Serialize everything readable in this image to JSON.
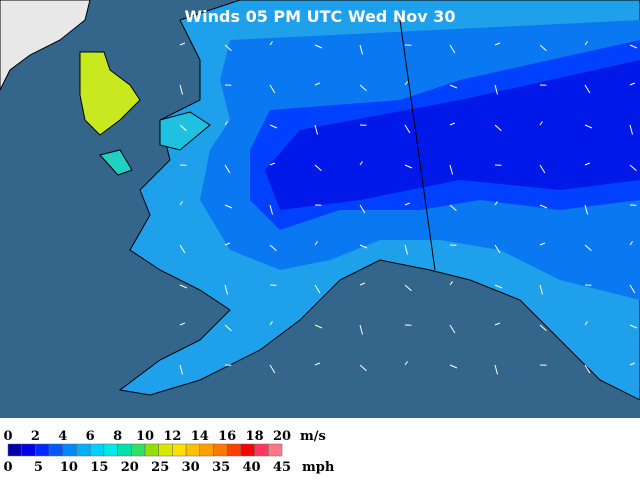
{
  "title": "Winds 05 PM UTC Wed Nov 30",
  "legend": {
    "ms_ticks": [
      0,
      2,
      4,
      6,
      8,
      10,
      12,
      14,
      16,
      18,
      20
    ],
    "ms_unit": "m/s",
    "mph_ticks": [
      0,
      5,
      10,
      15,
      20,
      25,
      30,
      35,
      40,
      45
    ],
    "mph_unit": "mph",
    "colors": [
      "#0000a8",
      "#0000e0",
      "#0028ff",
      "#0058ff",
      "#0088ff",
      "#00b0ff",
      "#00d0ff",
      "#00e8e8",
      "#00e0a8",
      "#30e060",
      "#90e000",
      "#d8e800",
      "#ffe000",
      "#ffc000",
      "#ffa000",
      "#ff7800",
      "#ff4000",
      "#ff0000",
      "#ff3860",
      "#ff7888"
    ]
  }
}
